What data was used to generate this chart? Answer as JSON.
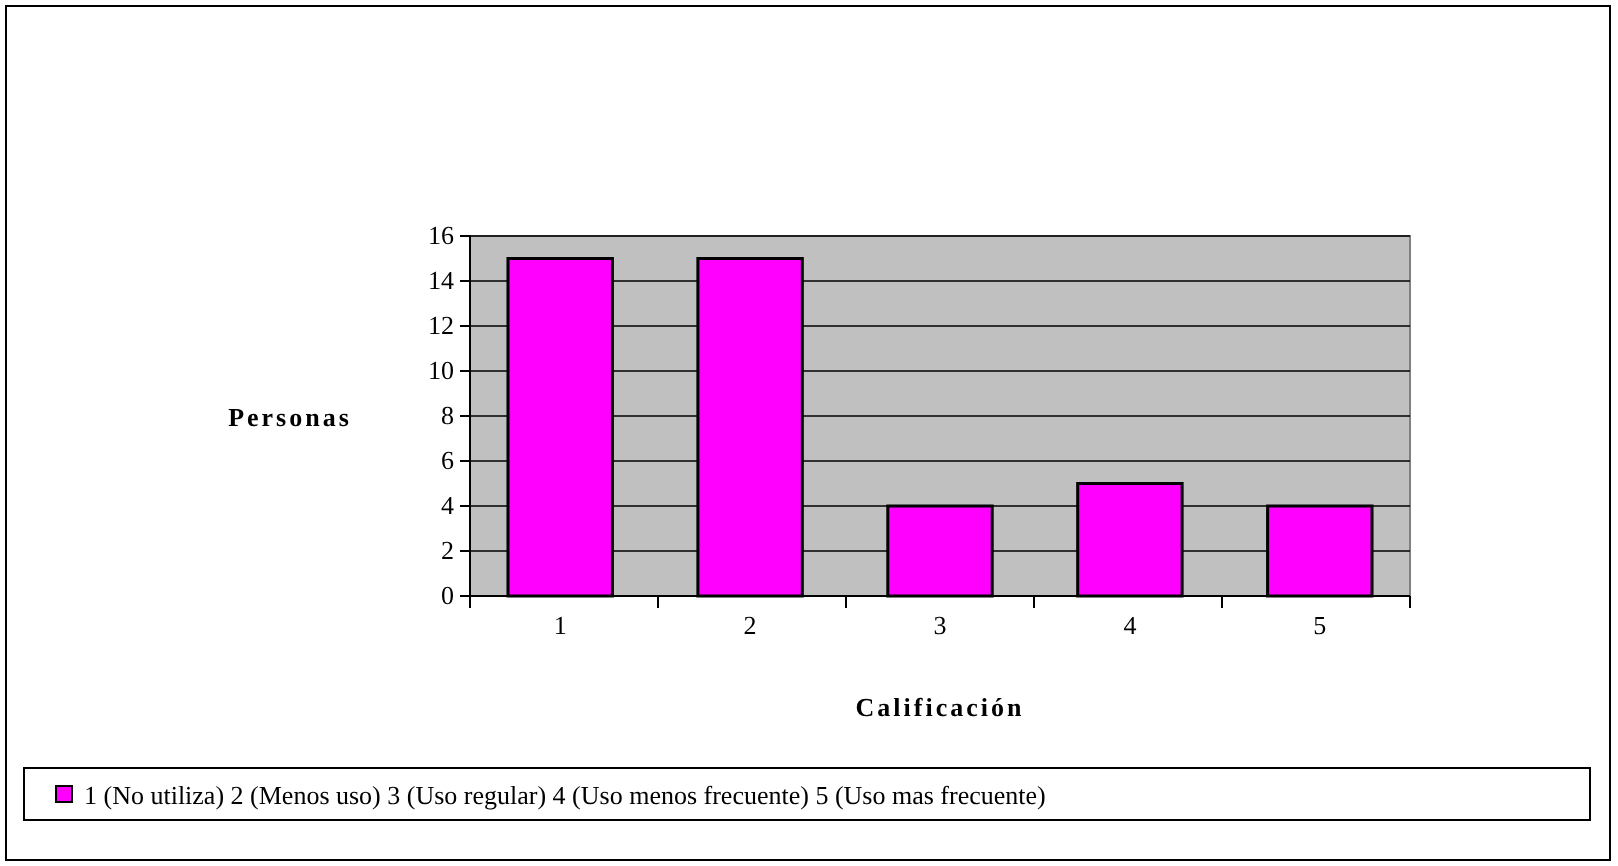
{
  "chart_data": {
    "type": "bar",
    "xlabel": "Calificación",
    "ylabel": "Personas",
    "categories": [
      "1",
      "2",
      "3",
      "4",
      "5"
    ],
    "series": [
      {
        "name": "1 (No utiliza) 2 (Menos uso) 3 (Uso regular) 4 (Uso menos frecuente) 5 (Uso mas frecuente)",
        "color": "#ff00ff",
        "values": [
          15,
          15,
          4,
          5,
          4
        ]
      }
    ],
    "ylim": [
      0,
      16
    ],
    "yticks": [
      0,
      2,
      4,
      6,
      8,
      10,
      12,
      14,
      16
    ],
    "grid": "y",
    "legend": "bottom"
  }
}
